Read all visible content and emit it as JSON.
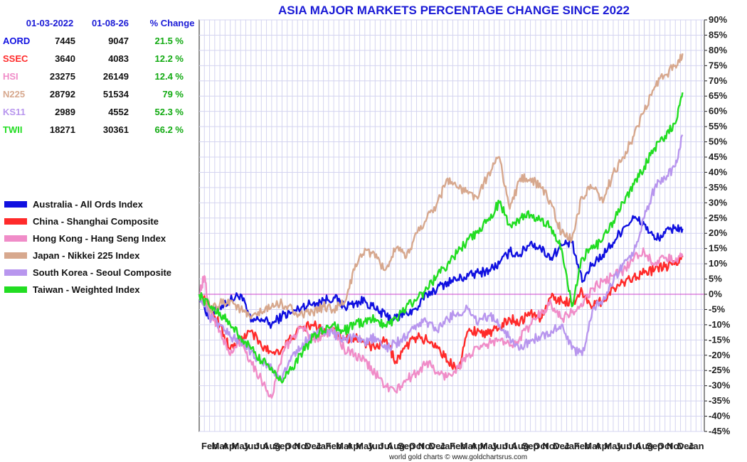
{
  "chart_data": {
    "type": "line",
    "title": "ASIA MAJOR MARKETS PERCENTAGE CHANGE SINCE 2022",
    "credit": "world gold charts © www.goldchartsrus.com",
    "y_unit": "%",
    "ylim": [
      -45,
      90
    ],
    "y_ticks": [
      90,
      85,
      80,
      75,
      70,
      65,
      60,
      55,
      50,
      45,
      40,
      35,
      30,
      25,
      20,
      15,
      10,
      5,
      0,
      -5,
      -10,
      -15,
      -20,
      -25,
      -30,
      -35,
      -40,
      -45
    ],
    "x_ticks": [
      "Feb",
      "Mar",
      "Apr",
      "May",
      "Jun",
      "Jul",
      "Aug",
      "Sep",
      "Oct",
      "Nov",
      "Dec",
      "Jan",
      "Feb",
      "Mar",
      "Apr",
      "May",
      "Jun",
      "Jul",
      "Aug",
      "Sep",
      "Oct",
      "Nov",
      "Dec",
      "Jan",
      "Feb",
      "Mar",
      "Apr",
      "May",
      "Jun",
      "Jul",
      "Aug",
      "Sep",
      "Oct",
      "Nov",
      "Dec",
      "Jan",
      "Feb",
      "Mar",
      "Apr",
      "May",
      "Jun",
      "Jul",
      "Aug",
      "Sep",
      "Oct",
      "Nov",
      "Dec",
      "Jan"
    ],
    "x_range_months": [
      0,
      48.8
    ],
    "table": {
      "headers": [
        "",
        "01-03-2022",
        "01-08-26",
        "% Change"
      ],
      "rows": [
        {
          "code": "AORD",
          "start": "7445",
          "end": "9047",
          "change": "21.5 %",
          "color": "#1010e0"
        },
        {
          "code": "SSEC",
          "start": "3640",
          "end": "4083",
          "change": "12.2 %",
          "color": "#ff2a2a"
        },
        {
          "code": "HSI",
          "start": "23275",
          "end": "26149",
          "change": "12.4 %",
          "color": "#f08cc8"
        },
        {
          "code": "N225",
          "start": "28792",
          "end": "51534",
          "change": "79 %",
          "color": "#d7a88e"
        },
        {
          "code": "KS11",
          "start": "2989",
          "end": "4552",
          "change": "52.3 %",
          "color": "#b896ee"
        },
        {
          "code": "TWII",
          "start": "18271",
          "end": "30361",
          "change": "66.2 %",
          "color": "#22dd22"
        }
      ],
      "change_color": "#11aa11"
    },
    "legend": [
      "Australia - All Ords Index",
      "China - Shanghai Composite",
      "Hong Kong - Hang Seng Index",
      "Japan - Nikkei 225 Index",
      "South Korea - Seoul Composite",
      "Taiwan - Weighted Index"
    ],
    "series": [
      {
        "name": "Australia - All Ords Index",
        "color": "#1010e0",
        "points": [
          [
            0,
            0
          ],
          [
            1,
            -8
          ],
          [
            2,
            -4
          ],
          [
            3,
            -2
          ],
          [
            4,
            0
          ],
          [
            5,
            -9
          ],
          [
            6,
            -8
          ],
          [
            7,
            -10
          ],
          [
            8,
            -7
          ],
          [
            9,
            -6
          ],
          [
            10,
            -4
          ],
          [
            11,
            -3
          ],
          [
            12,
            -2
          ],
          [
            13,
            -1
          ],
          [
            14,
            -4
          ],
          [
            15,
            -3
          ],
          [
            16,
            -2
          ],
          [
            17,
            -5
          ],
          [
            18,
            -7
          ],
          [
            19,
            -8
          ],
          [
            20,
            -6
          ],
          [
            21,
            -5
          ],
          [
            22,
            0
          ],
          [
            23,
            2
          ],
          [
            24,
            4
          ],
          [
            25,
            5
          ],
          [
            26,
            6
          ],
          [
            27,
            7
          ],
          [
            28,
            8
          ],
          [
            29,
            10
          ],
          [
            30,
            14
          ],
          [
            31,
            13
          ],
          [
            32,
            17
          ],
          [
            33,
            15
          ],
          [
            34,
            12
          ],
          [
            35,
            16
          ],
          [
            36,
            17
          ],
          [
            37,
            4
          ],
          [
            38,
            10
          ],
          [
            39,
            13
          ],
          [
            40,
            17
          ],
          [
            41,
            22
          ],
          [
            42,
            25
          ],
          [
            43,
            23
          ],
          [
            44,
            18
          ],
          [
            45,
            20
          ],
          [
            46,
            22
          ],
          [
            46.7,
            21.5
          ]
        ]
      },
      {
        "name": "China - Shanghai Composite",
        "color": "#ff2a2a",
        "points": [
          [
            0,
            0
          ],
          [
            1,
            -4
          ],
          [
            2,
            -10
          ],
          [
            3,
            -18
          ],
          [
            4,
            -15
          ],
          [
            5,
            -12
          ],
          [
            6,
            -17
          ],
          [
            7,
            -19
          ],
          [
            8,
            -18
          ],
          [
            9,
            -14
          ],
          [
            10,
            -11
          ],
          [
            11,
            -10
          ],
          [
            12,
            -12
          ],
          [
            13,
            -11
          ],
          [
            14,
            -15
          ],
          [
            15,
            -14
          ],
          [
            16,
            -16
          ],
          [
            17,
            -18
          ],
          [
            18,
            -15
          ],
          [
            19,
            -22
          ],
          [
            20,
            -17
          ],
          [
            21,
            -14
          ],
          [
            22,
            -15
          ],
          [
            23,
            -17
          ],
          [
            24,
            -22
          ],
          [
            25,
            -24
          ],
          [
            26,
            -12
          ],
          [
            27,
            -12
          ],
          [
            28,
            -13
          ],
          [
            29,
            -11
          ],
          [
            30,
            -8
          ],
          [
            31,
            -9
          ],
          [
            32,
            -6
          ],
          [
            33,
            -8
          ],
          [
            34,
            -1
          ],
          [
            35,
            -2
          ],
          [
            36,
            -3
          ],
          [
            37,
            1
          ],
          [
            38,
            -4
          ],
          [
            39,
            -2
          ],
          [
            40,
            2
          ],
          [
            41,
            4
          ],
          [
            42,
            6
          ],
          [
            43,
            7
          ],
          [
            44,
            8
          ],
          [
            45,
            9
          ],
          [
            46,
            10
          ],
          [
            46.7,
            12.2
          ]
        ]
      },
      {
        "name": "Hong Kong - Hang Seng Index",
        "color": "#f08cc8",
        "points": [
          [
            0,
            0
          ],
          [
            0.5,
            6
          ],
          [
            1,
            -6
          ],
          [
            2,
            -12
          ],
          [
            3,
            -20
          ],
          [
            4,
            -15
          ],
          [
            5,
            -22
          ],
          [
            6,
            -28
          ],
          [
            7,
            -34
          ],
          [
            8,
            -20
          ],
          [
            9,
            -14
          ],
          [
            10,
            -11
          ],
          [
            11,
            -15
          ],
          [
            12,
            -13
          ],
          [
            13,
            -12
          ],
          [
            14,
            -18
          ],
          [
            15,
            -20
          ],
          [
            16,
            -22
          ],
          [
            17,
            -26
          ],
          [
            18,
            -30
          ],
          [
            19,
            -32
          ],
          [
            20,
            -28
          ],
          [
            21,
            -26
          ],
          [
            22,
            -22
          ],
          [
            23,
            -26
          ],
          [
            24,
            -27
          ],
          [
            25,
            -24
          ],
          [
            26,
            -20
          ],
          [
            27,
            -18
          ],
          [
            28,
            -16
          ],
          [
            29,
            -15
          ],
          [
            30,
            -17
          ],
          [
            31,
            -14
          ],
          [
            32,
            -10
          ],
          [
            33,
            -6
          ],
          [
            34,
            -3
          ],
          [
            35,
            -8
          ],
          [
            36,
            -6
          ],
          [
            37,
            -4
          ],
          [
            38,
            2
          ],
          [
            39,
            4
          ],
          [
            40,
            6
          ],
          [
            41,
            8
          ],
          [
            42,
            12
          ],
          [
            43,
            14
          ],
          [
            44,
            10
          ],
          [
            45,
            12
          ],
          [
            46,
            11
          ],
          [
            46.7,
            12.4
          ]
        ]
      },
      {
        "name": "Japan - Nikkei 225 Index",
        "color": "#d7a88e",
        "points": [
          [
            0,
            0
          ],
          [
            1,
            -6
          ],
          [
            2,
            -3
          ],
          [
            3,
            -2
          ],
          [
            4,
            -5
          ],
          [
            5,
            -8
          ],
          [
            6,
            -6
          ],
          [
            7,
            -4
          ],
          [
            8,
            -3
          ],
          [
            9,
            -5
          ],
          [
            10,
            -7
          ],
          [
            11,
            -6
          ],
          [
            12,
            -4
          ],
          [
            13,
            -5
          ],
          [
            14,
            -3
          ],
          [
            15,
            8
          ],
          [
            16,
            15
          ],
          [
            17,
            12
          ],
          [
            18,
            8
          ],
          [
            19,
            15
          ],
          [
            20,
            12
          ],
          [
            21,
            20
          ],
          [
            22,
            25
          ],
          [
            23,
            30
          ],
          [
            24,
            38
          ],
          [
            25,
            35
          ],
          [
            26,
            33
          ],
          [
            27,
            32
          ],
          [
            28,
            40
          ],
          [
            29,
            45
          ],
          [
            30,
            28
          ],
          [
            31,
            38
          ],
          [
            32,
            38
          ],
          [
            33,
            35
          ],
          [
            34,
            30
          ],
          [
            35,
            20
          ],
          [
            36,
            18
          ],
          [
            37,
            32
          ],
          [
            38,
            35
          ],
          [
            39,
            30
          ],
          [
            40,
            40
          ],
          [
            41,
            45
          ],
          [
            42,
            52
          ],
          [
            43,
            60
          ],
          [
            44,
            68
          ],
          [
            45,
            72
          ],
          [
            46,
            75
          ],
          [
            46.7,
            79
          ]
        ]
      },
      {
        "name": "South Korea - Seoul Composite",
        "color": "#b896ee",
        "points": [
          [
            0,
            0
          ],
          [
            1,
            -8
          ],
          [
            2,
            -10
          ],
          [
            3,
            -14
          ],
          [
            4,
            -15
          ],
          [
            5,
            -19
          ],
          [
            6,
            -22
          ],
          [
            7,
            -24
          ],
          [
            8,
            -28
          ],
          [
            9,
            -20
          ],
          [
            10,
            -16
          ],
          [
            11,
            -14
          ],
          [
            12,
            -12
          ],
          [
            13,
            -13
          ],
          [
            14,
            -15
          ],
          [
            15,
            -14
          ],
          [
            16,
            -16
          ],
          [
            17,
            -14
          ],
          [
            18,
            -18
          ],
          [
            19,
            -16
          ],
          [
            20,
            -14
          ],
          [
            21,
            -10
          ],
          [
            22,
            -9
          ],
          [
            23,
            -12
          ],
          [
            24,
            -8
          ],
          [
            25,
            -6
          ],
          [
            26,
            -5
          ],
          [
            27,
            -9
          ],
          [
            28,
            -7
          ],
          [
            29,
            -10
          ],
          [
            30,
            -14
          ],
          [
            31,
            -18
          ],
          [
            32,
            -15
          ],
          [
            33,
            -14
          ],
          [
            34,
            -12
          ],
          [
            35,
            -10
          ],
          [
            36,
            -18
          ],
          [
            37,
            -20
          ],
          [
            38,
            -5
          ],
          [
            39,
            -2
          ],
          [
            40,
            4
          ],
          [
            41,
            10
          ],
          [
            42,
            14
          ],
          [
            43,
            25
          ],
          [
            44,
            35
          ],
          [
            45,
            38
          ],
          [
            46,
            42
          ],
          [
            46.7,
            52.3
          ]
        ]
      },
      {
        "name": "Taiwan - Weighted Index",
        "color": "#22dd22",
        "points": [
          [
            0,
            0
          ],
          [
            1,
            -4
          ],
          [
            2,
            -6
          ],
          [
            3,
            -10
          ],
          [
            4,
            -14
          ],
          [
            5,
            -18
          ],
          [
            6,
            -22
          ],
          [
            7,
            -24
          ],
          [
            8,
            -29
          ],
          [
            9,
            -24
          ],
          [
            10,
            -19
          ],
          [
            11,
            -14
          ],
          [
            12,
            -12
          ],
          [
            13,
            -10
          ],
          [
            14,
            -12
          ],
          [
            15,
            -10
          ],
          [
            16,
            -9
          ],
          [
            17,
            -8
          ],
          [
            18,
            -10
          ],
          [
            19,
            -8
          ],
          [
            20,
            -4
          ],
          [
            21,
            -2
          ],
          [
            22,
            2
          ],
          [
            23,
            6
          ],
          [
            24,
            10
          ],
          [
            25,
            14
          ],
          [
            26,
            18
          ],
          [
            27,
            20
          ],
          [
            28,
            25
          ],
          [
            29,
            30
          ],
          [
            30,
            23
          ],
          [
            31,
            25
          ],
          [
            32,
            26
          ],
          [
            33,
            24
          ],
          [
            34,
            22
          ],
          [
            35,
            15
          ],
          [
            36,
            -4
          ],
          [
            37,
            12
          ],
          [
            38,
            15
          ],
          [
            39,
            18
          ],
          [
            40,
            24
          ],
          [
            41,
            30
          ],
          [
            42,
            36
          ],
          [
            43,
            42
          ],
          [
            44,
            48
          ],
          [
            45,
            52
          ],
          [
            46,
            56
          ],
          [
            46.7,
            66.2
          ]
        ]
      }
    ]
  }
}
